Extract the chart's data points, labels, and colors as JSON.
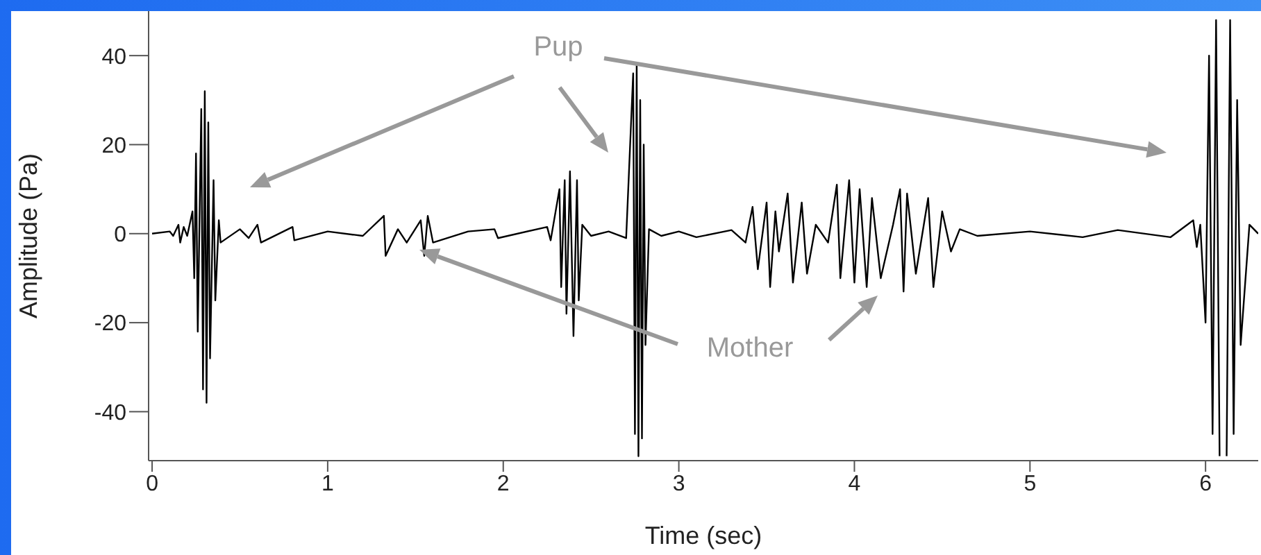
{
  "chart_data": {
    "type": "line",
    "xlabel": "Time (sec)",
    "ylabel": "Amplitude (Pa)",
    "xlim": [
      -0.02,
      6.3
    ],
    "xticks": [
      0,
      1,
      2,
      3,
      4,
      5,
      6
    ],
    "ylim": [
      -51,
      50
    ],
    "yticks": [
      -40,
      -20,
      0,
      20,
      40
    ],
    "grid": false,
    "marker": "none",
    "line_style": "solid",
    "annotations": [
      "Pup",
      "Mother"
    ],
    "series": [
      {
        "color": "#000000",
        "x": [
          0,
          0.1,
          0.12,
          0.15,
          0.16,
          0.18,
          0.2,
          0.23,
          0.24,
          0.25,
          0.26,
          0.28,
          0.29,
          0.3,
          0.31,
          0.32,
          0.33,
          0.35,
          0.36,
          0.38,
          0.39,
          0.5,
          0.55,
          0.6,
          0.62,
          0.8,
          0.81,
          1.0,
          1.2,
          1.32,
          1.33,
          1.4,
          1.45,
          1.53,
          1.55,
          1.57,
          1.6,
          1.8,
          1.95,
          1.97,
          2.25,
          2.27,
          2.32,
          2.33,
          2.35,
          2.36,
          2.38,
          2.4,
          2.42,
          2.43,
          2.45,
          2.5,
          2.6,
          2.7,
          2.74,
          2.75,
          2.76,
          2.77,
          2.78,
          2.79,
          2.8,
          2.81,
          2.83,
          2.9,
          3.0,
          3.1,
          3.3,
          3.38,
          3.42,
          3.45,
          3.5,
          3.52,
          3.55,
          3.57,
          3.62,
          3.65,
          3.7,
          3.73,
          3.78,
          3.85,
          3.9,
          3.92,
          3.97,
          4.0,
          4.03,
          4.07,
          4.1,
          4.15,
          4.22,
          4.26,
          4.28,
          4.3,
          4.35,
          4.42,
          4.45,
          4.5,
          4.55,
          4.6,
          4.7,
          5.0,
          5.3,
          5.5,
          5.8,
          5.93,
          5.95,
          5.97,
          6.0,
          6.02,
          6.04,
          6.06,
          6.08,
          6.1,
          6.12,
          6.14,
          6.16,
          6.18,
          6.2,
          6.25,
          6.3
        ],
        "values": [
          0,
          0.5,
          -0.5,
          2,
          -2,
          1.5,
          -0.5,
          5,
          -10,
          18,
          -22,
          28,
          -35,
          32,
          -38,
          25,
          -28,
          12,
          -15,
          3,
          -2,
          1,
          -1,
          2,
          -2,
          1.5,
          -1.5,
          0.5,
          -0.5,
          4,
          -5,
          1,
          -2,
          3,
          -5,
          4,
          -2,
          0.5,
          1,
          -1,
          1.5,
          -1.5,
          10,
          -12,
          12,
          -18,
          14,
          -23,
          12,
          -15,
          2,
          -0.5,
          0.5,
          -1,
          36,
          -45,
          38,
          -50,
          30,
          -46,
          20,
          -25,
          1,
          -0.5,
          0.5,
          -0.8,
          0.8,
          -2,
          6,
          -8,
          7,
          -12,
          5,
          -4,
          9,
          -11,
          7,
          -9,
          2,
          -2,
          11,
          -10,
          12,
          -11,
          10,
          -12,
          8,
          -10,
          2,
          10,
          -13,
          9,
          -9,
          8,
          -12,
          5,
          -4,
          1,
          -0.5,
          0.5,
          -0.8,
          0.8,
          -0.8,
          3,
          -3,
          2,
          -20,
          40,
          -45,
          48,
          -50,
          null,
          -50,
          48,
          -45,
          30,
          -25,
          2,
          0
        ]
      }
    ]
  }
}
